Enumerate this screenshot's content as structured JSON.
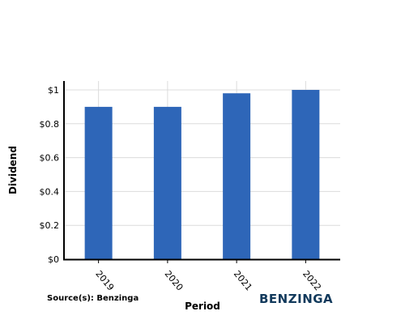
{
  "chart_data": {
    "type": "bar",
    "categories": [
      "2019",
      "2020",
      "2021",
      "2022"
    ],
    "values": [
      0.9,
      0.9,
      0.98,
      1.0
    ],
    "xlabel": "Period",
    "ylabel": "Dividend",
    "ylim": [
      0,
      1
    ],
    "yticks": [
      0,
      0.2,
      0.4,
      0.6,
      0.8,
      1
    ],
    "ytick_labels": [
      "$0",
      "$0.2",
      "$0.4",
      "$0.6",
      "$0.8",
      "$1"
    ],
    "grid": true,
    "bar_color": "#2e66b8"
  },
  "footer": {
    "source": "Source(s): Benzinga",
    "logo": "BENZINGA"
  }
}
